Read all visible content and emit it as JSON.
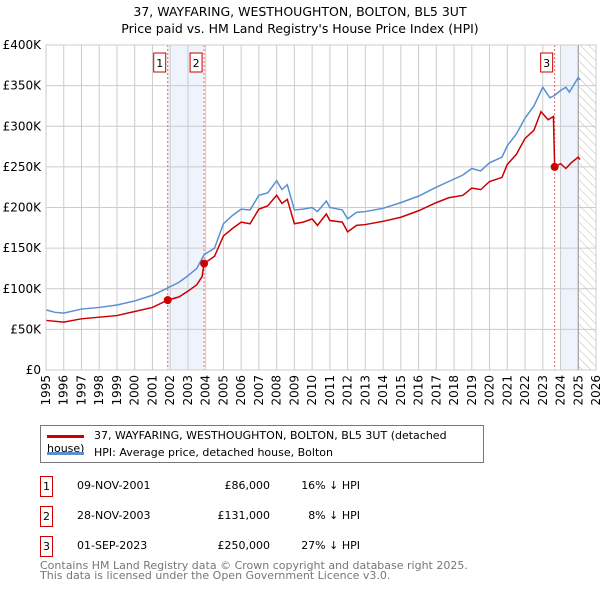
{
  "chart_data": {
    "type": "line",
    "title": "37, WAYFARING, WESTHOUGHTON, BOLTON, BL5 3UT",
    "subtitle": "Price paid vs. HM Land Registry's House Price Index (HPI)",
    "xlim": [
      1995,
      2026
    ],
    "ylim": [
      0,
      400000
    ],
    "x_ticks": [
      "1995",
      "1996",
      "1997",
      "1998",
      "1999",
      "2000",
      "2001",
      "2002",
      "2003",
      "2004",
      "2005",
      "2006",
      "2007",
      "2008",
      "2009",
      "2010",
      "2011",
      "2012",
      "2013",
      "2014",
      "2015",
      "2016",
      "2017",
      "2018",
      "2019",
      "2020",
      "2021",
      "2022",
      "2023",
      "2024",
      "2025",
      "2026"
    ],
    "y_ticks": [
      {
        "v": 0,
        "label": "£0"
      },
      {
        "v": 50000,
        "label": "£50K"
      },
      {
        "v": 100000,
        "label": "£100K"
      },
      {
        "v": 150000,
        "label": "£150K"
      },
      {
        "v": 200000,
        "label": "£200K"
      },
      {
        "v": 250000,
        "label": "£250K"
      },
      {
        "v": 300000,
        "label": "£300K"
      },
      {
        "v": 350000,
        "label": "£350K"
      },
      {
        "v": 400000,
        "label": "£400K"
      }
    ],
    "grid": true,
    "shaded_ranges": [
      [
        2001.86,
        2003.91
      ],
      [
        2024.0,
        2025.0
      ]
    ],
    "hatched_from": 2025.0,
    "series": [
      {
        "name": "37, WAYFARING, WESTHOUGHTON, BOLTON, BL5 3UT (detached house)",
        "color": "#cc0000",
        "x": [
          1995,
          1996,
          1997,
          1998,
          1999,
          2000,
          2001,
          2001.86,
          2002.5,
          2003,
          2003.5,
          2003.8,
          2003.91,
          2004.5,
          2005,
          2005.5,
          2006,
          2006.5,
          2007,
          2007.5,
          2008,
          2008.3,
          2008.6,
          2009,
          2009.5,
          2010,
          2010.3,
          2010.8,
          2011,
          2011.7,
          2012,
          2012.5,
          2013,
          2014,
          2015,
          2016,
          2017,
          2017.7,
          2018.5,
          2019,
          2019.5,
          2020,
          2020.7,
          2021,
          2021.5,
          2022,
          2022.5,
          2022.9,
          2023.3,
          2023.6,
          2023.67,
          2024,
          2024.3,
          2024.6,
          2025,
          2025.1
        ],
        "y": [
          61000,
          59000,
          63000,
          65000,
          67000,
          72000,
          77000,
          86000,
          90000,
          97000,
          105000,
          115000,
          131000,
          140000,
          165000,
          174000,
          182000,
          180000,
          198000,
          202000,
          215000,
          205000,
          210000,
          180000,
          182000,
          186000,
          178000,
          192000,
          184000,
          182000,
          170000,
          178000,
          179000,
          183000,
          188000,
          196000,
          206000,
          212000,
          215000,
          224000,
          222000,
          232000,
          237000,
          253000,
          265000,
          285000,
          295000,
          318000,
          308000,
          312000,
          250000,
          254000,
          248000,
          255000,
          262000,
          259000
        ]
      },
      {
        "name": "HPI: Average price, detached house, Bolton",
        "color": "#5b8fd0",
        "x": [
          1995,
          1995.5,
          1996,
          1997,
          1998,
          1999,
          2000,
          2001,
          2001.86,
          2002.5,
          2003,
          2003.5,
          2003.91,
          2004.5,
          2005,
          2005.5,
          2006,
          2006.5,
          2007,
          2007.5,
          2008,
          2008.3,
          2008.6,
          2009,
          2009.5,
          2010,
          2010.3,
          2010.8,
          2011,
          2011.7,
          2012,
          2012.5,
          2013,
          2014,
          2015,
          2016,
          2017,
          2017.7,
          2018.5,
          2019,
          2019.5,
          2020,
          2020.7,
          2021,
          2021.5,
          2022,
          2022.5,
          2023,
          2023.4,
          2023.67,
          2024,
          2024.3,
          2024.5,
          2025,
          2025.1
        ],
        "y": [
          74000,
          71000,
          70000,
          75000,
          77000,
          80000,
          85000,
          92000,
          101000,
          108000,
          116000,
          125000,
          142000,
          150000,
          180000,
          190000,
          198000,
          197000,
          215000,
          218000,
          233000,
          222000,
          228000,
          197000,
          198000,
          200000,
          195000,
          208000,
          200000,
          197000,
          186000,
          194000,
          195000,
          199000,
          206000,
          214000,
          225000,
          232000,
          240000,
          248000,
          245000,
          255000,
          262000,
          276000,
          290000,
          310000,
          325000,
          348000,
          335000,
          338000,
          344000,
          348000,
          342000,
          360000,
          357000
        ]
      }
    ],
    "sales": [
      {
        "label": "1",
        "x": 2001.86,
        "y": 86000
      },
      {
        "label": "2",
        "x": 2003.91,
        "y": 131000
      },
      {
        "label": "3",
        "x": 2023.67,
        "y": 250000
      }
    ]
  },
  "legend": {
    "items": [
      "37, WAYFARING, WESTHOUGHTON, BOLTON, BL5 3UT (detached house)",
      "HPI: Average price, detached house, Bolton"
    ]
  },
  "sales_table": [
    {
      "num": "1",
      "date": "09-NOV-2001",
      "price": "£86,000",
      "hpi": "16% ↓ HPI"
    },
    {
      "num": "2",
      "date": "28-NOV-2003",
      "price": "£131,000",
      "hpi": "8% ↓ HPI"
    },
    {
      "num": "3",
      "date": "01-SEP-2023",
      "price": "£250,000",
      "hpi": "27% ↓ HPI"
    }
  ],
  "footer": {
    "line1": "Contains HM Land Registry data © Crown copyright and database right 2025.",
    "line2": "This data is licensed under the Open Government Licence v3.0."
  }
}
